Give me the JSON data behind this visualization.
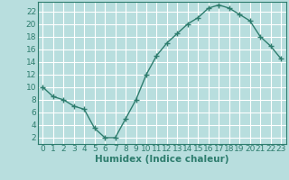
{
  "x": [
    0,
    1,
    2,
    3,
    4,
    5,
    6,
    7,
    8,
    9,
    10,
    11,
    12,
    13,
    14,
    15,
    16,
    17,
    18,
    19,
    20,
    21,
    22,
    23
  ],
  "y": [
    10,
    8.5,
    8,
    7,
    6.5,
    3.5,
    2,
    2,
    5,
    8,
    12,
    15,
    17,
    18.5,
    20,
    21,
    22.5,
    23,
    22.5,
    21.5,
    20.5,
    18,
    16.5,
    14.5
  ],
  "line_color": "#2e7d6e",
  "marker": "+",
  "bg_color": "#b8dede",
  "grid_color": "#ffffff",
  "axis_color": "#2e7d6e",
  "xlabel": "Humidex (Indice chaleur)",
  "ylim": [
    1,
    23.5
  ],
  "xlim": [
    -0.5,
    23.5
  ],
  "yticks": [
    2,
    4,
    6,
    8,
    10,
    12,
    14,
    16,
    18,
    20,
    22
  ],
  "xticks": [
    0,
    1,
    2,
    3,
    4,
    5,
    6,
    7,
    8,
    9,
    10,
    11,
    12,
    13,
    14,
    15,
    16,
    17,
    18,
    19,
    20,
    21,
    22,
    23
  ],
  "xtick_labels": [
    "0",
    "1",
    "2",
    "3",
    "4",
    "5",
    "6",
    "7",
    "8",
    "9",
    "10",
    "11",
    "12",
    "13",
    "14",
    "15",
    "16",
    "17",
    "18",
    "19",
    "20",
    "21",
    "22",
    "23"
  ],
  "marker_size": 4,
  "line_width": 1.0,
  "font_size": 6.5,
  "xlabel_fontsize": 7.5
}
